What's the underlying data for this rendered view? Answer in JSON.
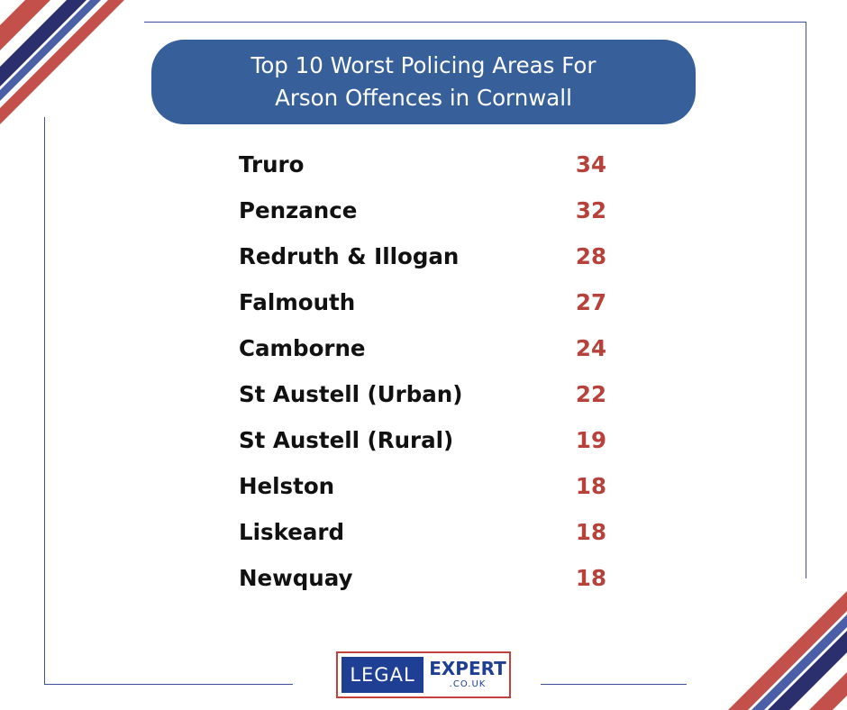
{
  "title": {
    "line1": "Top 10 Worst Policing Areas For",
    "line2": "Arson Offences in Cornwall"
  },
  "areas": [
    {
      "name": "Truro",
      "count": "34"
    },
    {
      "name": "Penzance",
      "count": "32"
    },
    {
      "name": "Redruth & Illogan",
      "count": "28"
    },
    {
      "name": "Falmouth",
      "count": "27"
    },
    {
      "name": "Camborne",
      "count": "24"
    },
    {
      "name": "St Austell (Urban)",
      "count": "22"
    },
    {
      "name": "St Austell (Rural)",
      "count": "19"
    },
    {
      "name": "Helston",
      "count": "18"
    },
    {
      "name": "Liskeard",
      "count": "18"
    },
    {
      "name": "Newquay",
      "count": "18"
    }
  ],
  "logo": {
    "left": "LEGAL",
    "right": "EXPERT",
    "sub": ".CO.UK"
  },
  "colors": {
    "navy": "#2b2f6e",
    "red": "#c4504c",
    "pill": "#37609a",
    "count": "#b7423c",
    "brand_blue": "#1f3f95"
  }
}
